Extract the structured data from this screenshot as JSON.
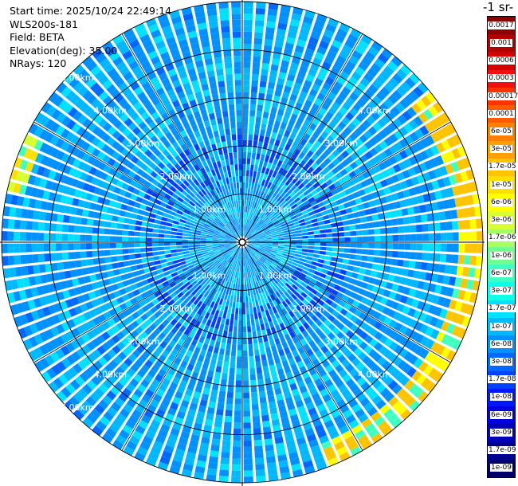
{
  "header": {
    "start_time": "Start time: 2025/10/24 22:49:14",
    "device": "WLS200s-181",
    "field": "Field: BETA",
    "elevation": "Elevation(deg): 35.00",
    "nrays": "NRays: 120"
  },
  "colorbar": {
    "title": "-1 sr-",
    "labels": [
      "0.0017",
      "0.001",
      "0.0006",
      "0.0003",
      "0.00017",
      "0.0001",
      "6e-05",
      "3e-05",
      "1.7e-05",
      "1e-05",
      "6e-06",
      "3e-06",
      "1.7e-06",
      "1e-06",
      "6e-07",
      "3e-07",
      "1.7e-07",
      "1e-07",
      "6e-08",
      "3e-08",
      "1.7e-08",
      "1e-08",
      "6e-09",
      "3e-09",
      "1.7e-09",
      "1e-09"
    ],
    "colors": [
      "#8b0000",
      "#b00000",
      "#d40000",
      "#f01010",
      "#ff3300",
      "#ff5a00",
      "#ff8000",
      "#ffa000",
      "#ffc400",
      "#ffe000",
      "#ffff00",
      "#d8ff30",
      "#a8ff60",
      "#70ff90",
      "#40ffc0",
      "#10ffe8",
      "#00e0ff",
      "#00b8ff",
      "#0090ff",
      "#0068ff",
      "#0040ff",
      "#0018ff",
      "#0000e0",
      "#0000b8",
      "#000090",
      "#000068"
    ]
  },
  "chart_data": {
    "type": "heatmap",
    "projection": "polar-ppi",
    "field": "BETA",
    "nrays": 120,
    "range_rings_km": [
      1,
      2,
      3,
      4,
      5
    ],
    "ring_labels": [
      "1.00km",
      "2.00km",
      "3.00km",
      "4.00km",
      "5.00km"
    ],
    "max_range_km": 5.0,
    "scale": "log",
    "vmin": 1e-09,
    "vmax": 0.0017,
    "dominant_value": 1e-07,
    "features": [
      {
        "range_km": [
          4.4,
          4.9
        ],
        "azimuth_deg": [
          50,
          160
        ],
        "peak_value": 1.7e-05
      },
      {
        "range_km": [
          4.6,
          4.9
        ],
        "azimuth_deg": [
          282,
          296
        ],
        "peak_value": 1e-05
      }
    ]
  }
}
